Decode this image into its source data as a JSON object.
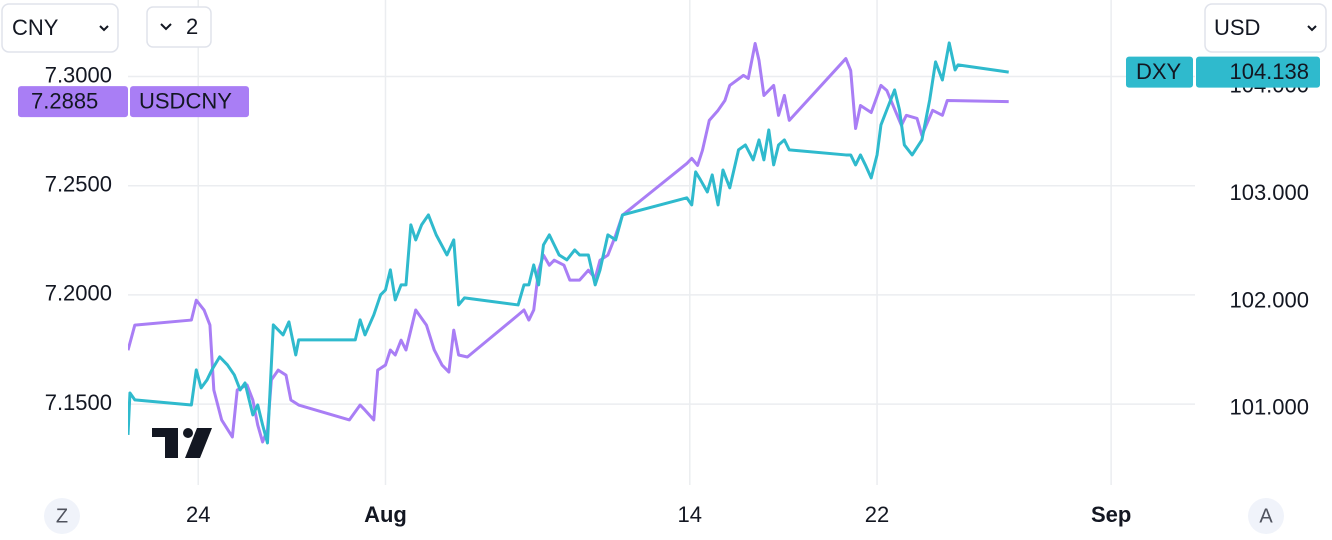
{
  "chart_data": {
    "type": "line",
    "xlim": [
      "07-21 00:00",
      "09-04 14:00"
    ],
    "xticks": [
      {
        "value": "07-24 00:00",
        "label": "24"
      },
      {
        "value": "08-01 00:00",
        "label": "Aug"
      },
      {
        "value": "08-14 00:00",
        "label": "14"
      },
      {
        "value": "08-22 00:00",
        "label": "22"
      },
      {
        "value": "09-01 00:00",
        "label": "Sep"
      }
    ],
    "ylim": [
      7.113,
      7.335
    ],
    "yticks": [
      {
        "value": 7.15,
        "label": "7.1500"
      },
      {
        "value": 7.2,
        "label": "7.2000"
      },
      {
        "value": 7.25,
        "label": "7.2500"
      },
      {
        "value": 7.3,
        "label": "7.3000"
      }
    ],
    "y2lim": [
      100.29,
      104.81
    ],
    "y2ticks": [
      {
        "value": 101,
        "label": "101.000"
      },
      {
        "value": 102,
        "label": "102.000"
      },
      {
        "value": 103,
        "label": "103.000"
      },
      {
        "value": 104,
        "label": "104.000"
      }
    ],
    "grid": true,
    "series": [
      {
        "name": "USDCNY",
        "color": "#a97ef5",
        "axis": "y",
        "last_value_label": "7.2885",
        "x": [
          "07-21 00:00",
          "07-21 07:00",
          "07-23 17:00",
          "07-23 22:00",
          "07-24 06:00",
          "07-24 12:00",
          "07-24 16:00",
          "07-25 00:00",
          "07-25 11:00",
          "07-25 16:00",
          "07-26 02:00",
          "07-26 08:00",
          "07-26 13:00",
          "07-26 18:00",
          "07-26 23:00",
          "07-27 03:00",
          "07-27 10:00",
          "07-27 18:00",
          "07-27 23:00",
          "07-28 07:00",
          "07-30 11:00",
          "07-30 22:00",
          "07-31 03:00",
          "07-31 12:00",
          "07-31 16:00",
          "08-01 00:00",
          "08-01 05:00",
          "08-01 10:00",
          "08-01 16:00",
          "08-01 21:00",
          "08-02 02:00",
          "08-02 07:00",
          "08-02 18:00",
          "08-03 02:00",
          "08-03 10:00",
          "08-03 17:00",
          "08-03 22:00",
          "08-04 03:00",
          "08-04 12:00",
          "08-06 16:00",
          "08-06 22:00",
          "08-07 03:00",
          "08-07 08:00",
          "08-07 13:00",
          "08-07 18:00",
          "08-08 00:00",
          "08-08 05:00",
          "08-08 15:00",
          "08-08 21:00",
          "08-09 07:00",
          "08-09 16:00",
          "08-09 23:00",
          "08-10 04:00",
          "08-10 12:00",
          "08-10 20:00",
          "08-11 03:00",
          "08-13 21:00",
          "08-14 02:00",
          "08-14 08:00",
          "08-14 13:00",
          "08-14 20:00",
          "08-15 05:00",
          "08-15 12:00",
          "08-15 17:00",
          "08-16 07:00",
          "08-16 12:00",
          "08-16 19:00",
          "08-16 23:00",
          "08-17 04:00",
          "08-17 14:00",
          "08-17 19:00",
          "08-18 01:00",
          "08-18 06:00",
          "08-20 16:00",
          "08-20 21:00",
          "08-21 02:00",
          "08-21 07:00",
          "08-21 18:00",
          "08-22 04:00",
          "08-22 10:00",
          "08-23 01:00",
          "08-23 06:00",
          "08-23 17:00",
          "08-23 22:00",
          "08-24 09:00",
          "08-24 19:00",
          "08-25 00:00",
          "08-27 15:00"
        ],
        "values": [
          7.1747,
          7.1862,
          7.1885,
          7.1976,
          7.1931,
          7.1862,
          7.1565,
          7.1428,
          7.135,
          7.1565,
          7.1588,
          7.1519,
          7.1405,
          7.1327,
          7.1382,
          7.1611,
          7.1656,
          7.1633,
          7.1519,
          7.1496,
          7.1428,
          7.1496,
          7.1473,
          7.1428,
          7.1656,
          7.1679,
          7.1748,
          7.1725,
          7.1793,
          7.1748,
          7.1839,
          7.1931,
          7.1862,
          7.1748,
          7.1679,
          7.1647,
          7.1839,
          7.1725,
          7.1716,
          7.1908,
          7.1931,
          7.1885,
          7.1931,
          7.2113,
          7.2182,
          7.2136,
          7.2159,
          7.2136,
          7.2068,
          7.2068,
          7.2113,
          7.2077,
          7.2159,
          7.2182,
          7.2273,
          7.2365,
          7.2602,
          7.2625,
          7.2593,
          7.2662,
          7.2799,
          7.2845,
          7.289,
          7.2959,
          7.3005,
          7.2991,
          7.3151,
          7.3073,
          7.2913,
          7.2959,
          7.2822,
          7.2913,
          7.2799,
          7.3082,
          7.3027,
          7.2762,
          7.2867,
          7.2835,
          7.2959,
          7.2936,
          7.2776,
          7.2822,
          7.2808,
          7.273,
          7.2845,
          7.2822,
          7.289,
          7.2885
        ]
      },
      {
        "name": "DXY",
        "color": "#2fbacd",
        "axis": "y2",
        "last_value_label": "104.138",
        "x": [
          "07-21 00:00",
          "07-21 02:00",
          "07-21 07:00",
          "07-23 17:00",
          "07-23 22:00",
          "07-24 03:00",
          "07-24 09:00",
          "07-24 14:00",
          "07-24 22:00",
          "07-25 06:00",
          "07-25 13:00",
          "07-25 19:00",
          "07-26 00:00",
          "07-26 08:00",
          "07-26 13:00",
          "07-26 18:00",
          "07-26 23:00",
          "07-27 05:00",
          "07-27 10:00",
          "07-27 15:00",
          "07-27 21:00",
          "07-28 04:00",
          "07-28 07:00",
          "07-30 17:00",
          "07-30 22:00",
          "07-31 03:00",
          "07-31 12:00",
          "07-31 19:00",
          "08-01 00:00",
          "08-01 05:00",
          "08-01 10:00",
          "08-01 16:00",
          "08-01 21:00",
          "08-02 02:00",
          "08-02 07:00",
          "08-02 13:00",
          "08-02 20:00",
          "08-03 04:00",
          "08-03 15:00",
          "08-03 22:00",
          "08-04 03:00",
          "08-04 09:00",
          "08-06 16:00",
          "08-06 22:00",
          "08-07 03:00",
          "08-07 08:00",
          "08-07 13:00",
          "08-07 18:00",
          "08-08 00:00",
          "08-08 05:00",
          "08-08 10:00",
          "08-08 18:00",
          "08-09 02:00",
          "08-09 07:00",
          "08-09 16:00",
          "08-09 23:00",
          "08-10 04:00",
          "08-10 12:00",
          "08-10 20:00",
          "08-11 03:00",
          "08-13 21:00",
          "08-14 02:00",
          "08-14 06:00",
          "08-14 11:00",
          "08-14 18:00",
          "08-14 23:00",
          "08-15 05:00",
          "08-15 10:00",
          "08-15 17:00",
          "08-16 02:00",
          "08-16 09:00",
          "08-16 17:00",
          "08-16 23:00",
          "08-17 04:00",
          "08-17 09:00",
          "08-17 14:00",
          "08-17 19:00",
          "08-18 01:00",
          "08-18 06:00",
          "08-20 16:00",
          "08-20 21:00",
          "08-21 02:00",
          "08-21 07:00",
          "08-21 12:00",
          "08-21 18:00",
          "08-22 00:00",
          "08-22 04:00",
          "08-22 10:00",
          "08-22 18:00",
          "08-22 23:00",
          "08-23 04:00",
          "08-23 12:00",
          "08-23 22:00",
          "08-24 06:00",
          "08-24 12:00",
          "08-24 19:00",
          "08-25 02:00",
          "08-25 08:00",
          "08-25 11:00",
          "08-27 15:00"
        ],
        "values": [
          100.757,
          101.148,
          101.083,
          101.036,
          101.363,
          101.195,
          101.269,
          101.363,
          101.484,
          101.409,
          101.316,
          101.176,
          101.241,
          100.943,
          101.036,
          100.85,
          100.682,
          101.782,
          101.735,
          101.689,
          101.81,
          101.502,
          101.642,
          101.642,
          101.829,
          101.689,
          101.875,
          102.062,
          102.108,
          102.295,
          102.015,
          102.155,
          102.155,
          102.714,
          102.574,
          102.714,
          102.807,
          102.621,
          102.434,
          102.574,
          101.968,
          102.034,
          101.968,
          102.155,
          102.155,
          102.341,
          102.155,
          102.528,
          102.621,
          102.528,
          102.434,
          102.388,
          102.481,
          102.434,
          102.434,
          102.155,
          102.295,
          102.621,
          102.574,
          102.807,
          102.966,
          102.9,
          103.208,
          103.133,
          103.021,
          103.18,
          102.9,
          103.226,
          103.059,
          103.413,
          103.459,
          103.32,
          103.506,
          103.32,
          103.599,
          103.273,
          103.459,
          103.506,
          103.413,
          103.366,
          103.366,
          103.273,
          103.366,
          103.273,
          103.152,
          103.366,
          103.646,
          103.786,
          103.972,
          103.786,
          103.459,
          103.366,
          103.506,
          103.879,
          104.233,
          104.065,
          104.41,
          104.158,
          104.205,
          104.138
        ]
      }
    ]
  },
  "controls": {
    "left_currency": "CNY",
    "pane_count": "2",
    "right_currency": "USD",
    "left_scale_button": "Z",
    "right_scale_button": "A"
  }
}
